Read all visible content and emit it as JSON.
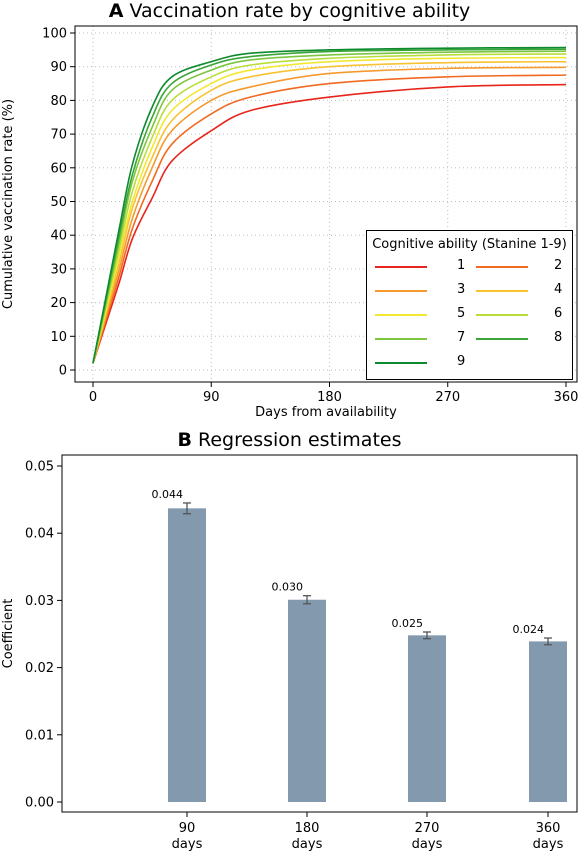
{
  "panel_a": {
    "letter": "A",
    "title": "Vaccination rate by cognitive ability",
    "xlabel": "Days from availability",
    "ylabel": "Cumulative vaccination rate (%)",
    "legend_title": "Cognitive ability (Stanine 1-9)"
  },
  "panel_b": {
    "letter": "B",
    "title": "Regression estimates",
    "ylabel": "Coefficient"
  },
  "chart_data": [
    {
      "type": "line",
      "title": "Vaccination rate by cognitive ability",
      "xlabel": "Days from availability",
      "ylabel": "Cumulative vaccination rate (%)",
      "xlim": [
        0,
        360
      ],
      "ylim": [
        0,
        100
      ],
      "xticks": [
        0,
        90,
        180,
        270,
        360
      ],
      "yticks": [
        0,
        10,
        20,
        30,
        40,
        50,
        60,
        70,
        80,
        90,
        100
      ],
      "grid": true,
      "legend_title": "Cognitive ability (Stanine 1-9)",
      "legend_position": "lower-right",
      "x": [
        0,
        10,
        20,
        30,
        45,
        60,
        90,
        120,
        180,
        270,
        360
      ],
      "series": [
        {
          "name": "1",
          "color": "#e8251c",
          "values": [
            2,
            14,
            26,
            39,
            51,
            62,
            71,
            77,
            81,
            84,
            84.7
          ]
        },
        {
          "name": "2",
          "color": "#f06a22",
          "values": [
            2,
            15,
            28,
            42,
            56,
            67,
            76,
            81,
            85,
            87,
            87.5
          ]
        },
        {
          "name": "3",
          "color": "#f59a2e",
          "values": [
            2,
            16,
            30,
            45,
            60,
            71,
            80,
            84,
            88,
            89.5,
            89.8
          ]
        },
        {
          "name": "4",
          "color": "#f7c331",
          "values": [
            2,
            17,
            32,
            48,
            63,
            74,
            83,
            87,
            90,
            91.2,
            91.5
          ]
        },
        {
          "name": "5",
          "color": "#f2e830",
          "values": [
            2,
            18,
            34,
            50,
            66,
            77,
            85,
            89,
            91.5,
            92.5,
            92.7
          ]
        },
        {
          "name": "6",
          "color": "#b9dd3b",
          "values": [
            2,
            19,
            36,
            53,
            69,
            80,
            87,
            90.5,
            92.5,
            93.5,
            93.8
          ]
        },
        {
          "name": "7",
          "color": "#7cc63f",
          "values": [
            2,
            20,
            38,
            56,
            72,
            83,
            89,
            92,
            93.5,
            94.3,
            94.6
          ]
        },
        {
          "name": "8",
          "color": "#3aa639",
          "values": [
            2,
            21,
            40,
            58,
            75,
            85,
            90.5,
            93,
            94.5,
            95,
            95.2
          ]
        },
        {
          "name": "9",
          "color": "#0e8a2e",
          "values": [
            2,
            22,
            42,
            61,
            78,
            87,
            91.5,
            94,
            95,
            95.5,
            95.7
          ]
        }
      ]
    },
    {
      "type": "bar",
      "title": "Regression estimates",
      "ylabel": "Coefficient",
      "ylim": [
        0,
        0.05
      ],
      "yticks": [
        "0.00",
        "0.01",
        "0.02",
        "0.03",
        "0.04",
        "0.05"
      ],
      "categories": [
        "90 days",
        "180 days",
        "270 days",
        "360 days"
      ],
      "category_lines": [
        [
          "90",
          "days"
        ],
        [
          "180",
          "days"
        ],
        [
          "270",
          "days"
        ],
        [
          "360",
          "days"
        ]
      ],
      "values": [
        0.0437,
        0.0301,
        0.0248,
        0.0239
      ],
      "labels": [
        "0.044",
        "0.030",
        "0.025",
        "0.024"
      ],
      "errors": [
        0.0008,
        0.0006,
        0.0005,
        0.0005
      ],
      "bar_color": "#8299ae"
    }
  ]
}
